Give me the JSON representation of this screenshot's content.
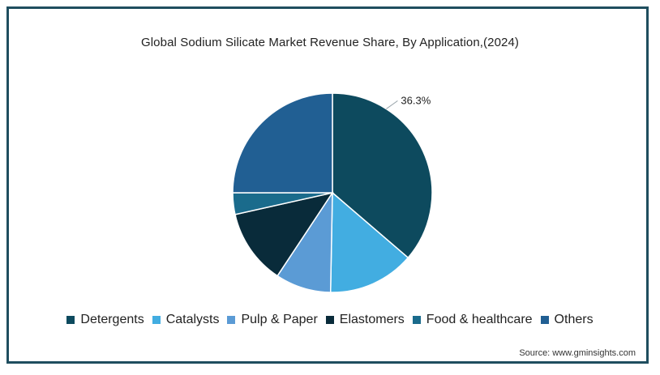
{
  "chart_data": {
    "type": "pie",
    "title": "Global Sodium Silicate Market Revenue Share, By Application,(2024)",
    "labels": [
      "Detergents",
      "Catalysts",
      "Pulp & Paper",
      "Elastomers",
      "Food & healthcare",
      "Others"
    ],
    "values": [
      36.3,
      14.0,
      9.0,
      12.2,
      3.5,
      25.0
    ],
    "colors": [
      "#0d4a5e",
      "#42ade1",
      "#5b9bd5",
      "#092b3a",
      "#1a6b8c",
      "#215f93"
    ],
    "data_labels": [
      {
        "index": 0,
        "text": "36.3%"
      }
    ],
    "legend_position": "bottom"
  },
  "source": "Source: www.gminsights.com"
}
